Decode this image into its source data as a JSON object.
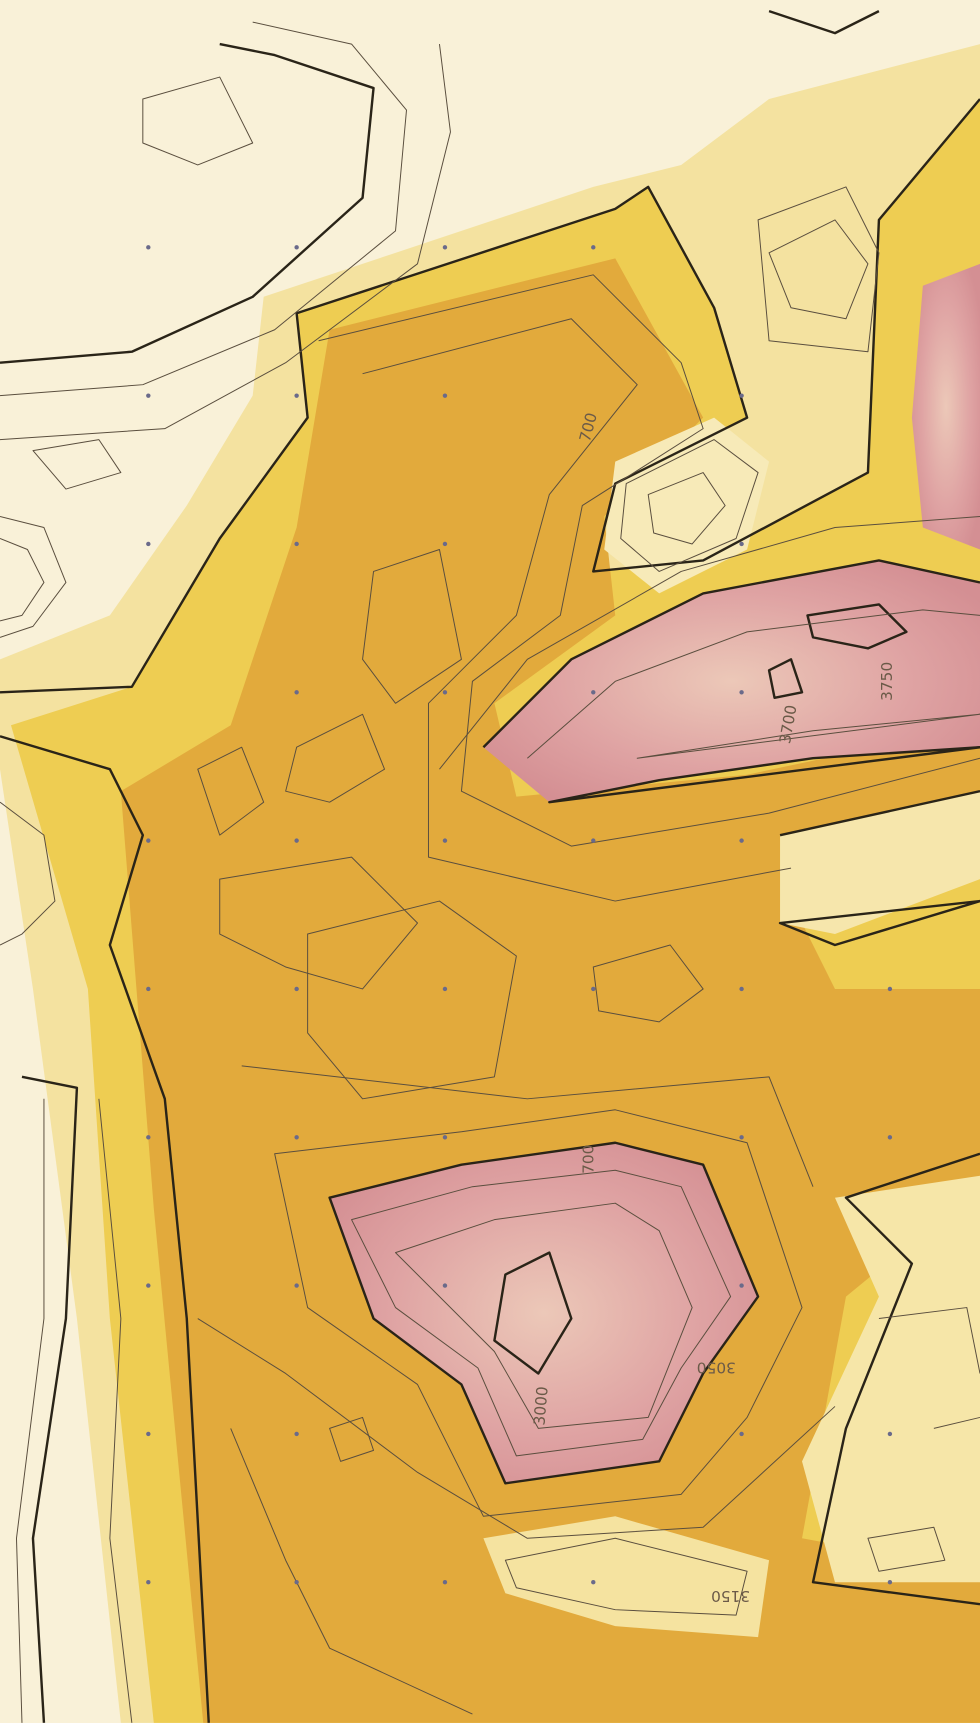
{
  "map": {
    "contour_labels": [
      "700",
      "3750",
      "3700",
      "700",
      "3000",
      "3050",
      "3150"
    ]
  }
}
